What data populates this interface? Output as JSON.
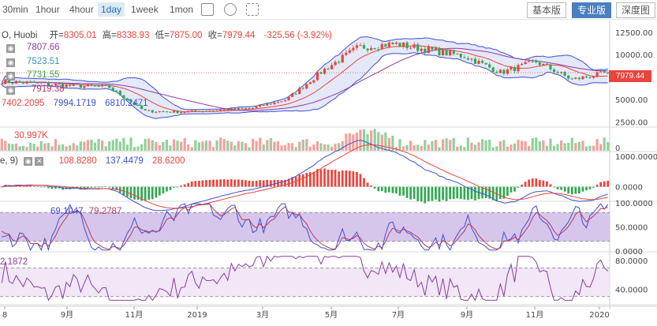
{
  "toolbar": {
    "timeframes": [
      "30min",
      "1hour",
      "4hour",
      "1day",
      "1week",
      "1mon"
    ],
    "active_timeframe": "1day",
    "view_buttons": [
      "基本版",
      "专业版",
      "深度图"
    ],
    "active_view": "专业版"
  },
  "header": {
    "symbol": "O, Huobi",
    "open_label": "开=",
    "open": "8305.01",
    "high_label": "高=",
    "high": "8338.93",
    "low_label": "低=",
    "low": "7875.00",
    "close_label": "收=",
    "close": "7979.44",
    "change": "-325.56 (-3.92%)"
  },
  "ma_legend": [
    "7807.66",
    "7523.51",
    "7731.55",
    "7919.38"
  ],
  "boll_legend": [
    "7402.2095",
    "7994.1719",
    "6810.2471"
  ],
  "last_price_tag": "7979.44",
  "volume_legend": "30.997K",
  "macd_legend": {
    "prefix": "e, 9)",
    "values": [
      "108.8280",
      "137.4479",
      "28.6200"
    ]
  },
  "kdj_legend": [
    "69.1047",
    "79.2787"
  ],
  "rsi_legend": "2.1872",
  "colors": {
    "up": "#e8453c",
    "down": "#32a852",
    "boll": "#3e4fd6",
    "macd_dif": "#3e4fd6",
    "macd_dea": "#e8453c",
    "osc": "#8e3aa3",
    "fill": "#c9b3e6"
  },
  "chart_data": [
    {
      "type": "line",
      "panel": "price",
      "x_ticks": [
        "8",
        "9月",
        "11月",
        "2019",
        "3月",
        "5月",
        "7月",
        "9月",
        "11月",
        "2020"
      ],
      "y_ticks": [
        2500,
        5000,
        7500,
        10000,
        12500
      ],
      "ylim": [
        2000,
        13800
      ],
      "x": [
        "2018-08",
        "2018-09",
        "2018-10",
        "2018-11",
        "2018-12",
        "2019-01",
        "2019-02",
        "2019-03",
        "2019-04",
        "2019-05",
        "2019-06",
        "2019-07",
        "2019-08",
        "2019-09",
        "2019-10",
        "2019-11",
        "2019-12",
        "2020-01"
      ],
      "series": [
        {
          "values": [
            7000,
            6800,
            6500,
            6400,
            3700,
            3600,
            3800,
            4000,
            5000,
            8200,
            10800,
            11200,
            10500,
            9800,
            8000,
            9200,
            7200,
            7979
          ]
        }
      ]
    },
    {
      "type": "bar",
      "panel": "volume",
      "ylim": [
        0,
        1
      ]
    },
    {
      "type": "line",
      "panel": "macd",
      "y_ticks": [
        0,
        1000
      ],
      "ylim": [
        -450,
        1100
      ]
    },
    {
      "type": "line",
      "panel": "kdj",
      "y_ticks": [
        0,
        50,
        100
      ],
      "ylim": [
        0,
        100
      ]
    },
    {
      "type": "line",
      "panel": "rsi",
      "y_ticks": [
        40,
        80
      ],
      "ylim": [
        20,
        90
      ]
    }
  ],
  "axis_labels": {
    "price": [
      "12500.00",
      "10000.00",
      "7500.00",
      "5000.00",
      "2500.00"
    ],
    "volume": "0",
    "macd": [
      "1000.0000",
      "0.0000"
    ],
    "kdj": [
      "100.0000",
      "50.0000",
      "0.0000"
    ],
    "rsi": [
      "80.0000",
      "40.0000"
    ]
  }
}
